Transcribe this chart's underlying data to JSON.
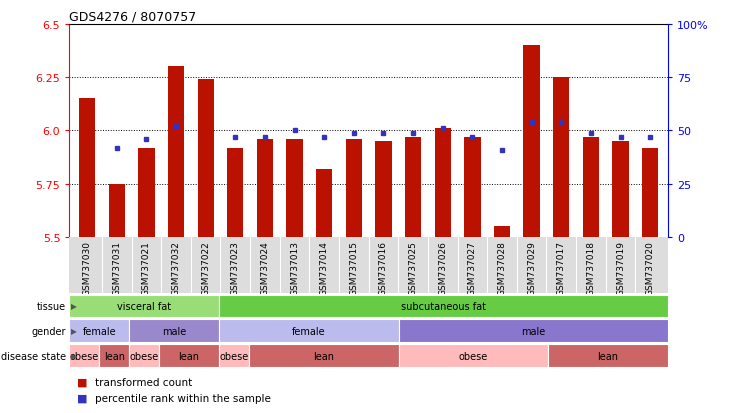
{
  "title": "GDS4276 / 8070757",
  "samples": [
    "GSM737030",
    "GSM737031",
    "GSM737021",
    "GSM737032",
    "GSM737022",
    "GSM737023",
    "GSM737024",
    "GSM737013",
    "GSM737014",
    "GSM737015",
    "GSM737016",
    "GSM737025",
    "GSM737026",
    "GSM737027",
    "GSM737028",
    "GSM737029",
    "GSM737017",
    "GSM737018",
    "GSM737019",
    "GSM737020"
  ],
  "bar_values_all": [
    6.15,
    5.75,
    5.92,
    6.3,
    6.24,
    5.92,
    5.96,
    5.96,
    5.82,
    5.96,
    5.95,
    5.97,
    6.01,
    5.97,
    5.55,
    6.4,
    6.25,
    5.97,
    5.95,
    5.92
  ],
  "percentile_values": [
    null,
    42,
    46,
    52,
    null,
    47,
    47,
    50,
    47,
    49,
    49,
    49,
    51,
    47,
    41,
    54,
    54,
    49,
    47,
    47
  ],
  "ylim_left": [
    5.5,
    6.5
  ],
  "ylim_right": [
    0,
    100
  ],
  "yticks_left": [
    5.5,
    5.75,
    6.0,
    6.25,
    6.5
  ],
  "yticks_right": [
    0,
    25,
    50,
    75,
    100
  ],
  "ytick_labels_right": [
    "0",
    "25",
    "50",
    "75",
    "100%"
  ],
  "bar_color": "#bb1100",
  "percentile_color": "#3333bb",
  "grid_color": "#000000",
  "bg_color": "#ffffff",
  "tissue_groups": [
    {
      "label": "visceral fat",
      "start": 0,
      "end": 5,
      "color": "#99dd77"
    },
    {
      "label": "subcutaneous fat",
      "start": 5,
      "end": 20,
      "color": "#66cc44"
    }
  ],
  "gender_groups": [
    {
      "label": "female",
      "start": 0,
      "end": 2,
      "color": "#bbbbee"
    },
    {
      "label": "male",
      "start": 2,
      "end": 5,
      "color": "#9988cc"
    },
    {
      "label": "female",
      "start": 5,
      "end": 11,
      "color": "#bbbbee"
    },
    {
      "label": "male",
      "start": 11,
      "end": 20,
      "color": "#8877cc"
    }
  ],
  "disease_groups": [
    {
      "label": "obese",
      "start": 0,
      "end": 1,
      "color": "#ffbbbb"
    },
    {
      "label": "lean",
      "start": 1,
      "end": 2,
      "color": "#cc6666"
    },
    {
      "label": "obese",
      "start": 2,
      "end": 3,
      "color": "#ffbbbb"
    },
    {
      "label": "lean",
      "start": 3,
      "end": 5,
      "color": "#cc6666"
    },
    {
      "label": "obese",
      "start": 5,
      "end": 6,
      "color": "#ffbbbb"
    },
    {
      "label": "lean",
      "start": 6,
      "end": 11,
      "color": "#cc6666"
    },
    {
      "label": "obese",
      "start": 11,
      "end": 16,
      "color": "#ffbbbb"
    },
    {
      "label": "lean",
      "start": 16,
      "end": 20,
      "color": "#cc6666"
    }
  ],
  "row_labels": [
    "tissue",
    "gender",
    "disease state"
  ],
  "legend_items": [
    {
      "label": "transformed count",
      "color": "#bb1100"
    },
    {
      "label": "percentile rank within the sample",
      "color": "#3333bb"
    }
  ]
}
